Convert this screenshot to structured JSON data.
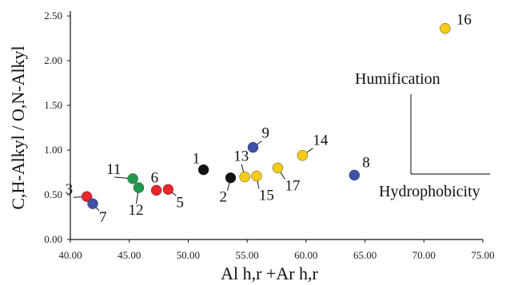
{
  "chart_data": {
    "type": "scatter",
    "title": "",
    "xlabel": "Al h,r +Ar h,r",
    "ylabel": "C,H-Alkyl / O,N-Alkyl",
    "xlim": [
      40,
      75
    ],
    "ylim": [
      0,
      2.5
    ],
    "x_ticks": [
      "40.00",
      "45.00",
      "50.00",
      "55.00",
      "60.00",
      "65.00",
      "70.00",
      "75.00"
    ],
    "y_ticks": [
      "0.00",
      "0.50",
      "1.00",
      "1.50",
      "2.00",
      "2.50"
    ],
    "grid": false,
    "colors": {
      "red": "#e8262b",
      "blue": "#3f51a8",
      "green": "#1f9a4a",
      "black": "#111111",
      "yellow": "#f5cc1a"
    },
    "points": [
      {
        "label": "1",
        "x": 51.3,
        "y": 0.78,
        "color": "black"
      },
      {
        "label": "2",
        "x": 53.6,
        "y": 0.69,
        "color": "black"
      },
      {
        "label": "3",
        "x": 41.4,
        "y": 0.48,
        "color": "red"
      },
      {
        "label": "5",
        "x": 48.3,
        "y": 0.56,
        "color": "red"
      },
      {
        "label": "6",
        "x": 47.3,
        "y": 0.55,
        "color": "red"
      },
      {
        "label": "7",
        "x": 41.9,
        "y": 0.4,
        "color": "blue"
      },
      {
        "label": "8",
        "x": 64.1,
        "y": 0.72,
        "color": "blue"
      },
      {
        "label": "9",
        "x": 55.5,
        "y": 1.03,
        "color": "blue"
      },
      {
        "label": "11",
        "x": 45.3,
        "y": 0.68,
        "color": "green"
      },
      {
        "label": "12",
        "x": 45.8,
        "y": 0.58,
        "color": "green"
      },
      {
        "label": "13",
        "x": 54.8,
        "y": 0.7,
        "color": "yellow"
      },
      {
        "label": "14",
        "x": 59.7,
        "y": 0.94,
        "color": "yellow"
      },
      {
        "label": "15",
        "x": 55.8,
        "y": 0.71,
        "color": "yellow"
      },
      {
        "label": "16",
        "x": 71.8,
        "y": 2.36,
        "color": "yellow"
      },
      {
        "label": "17",
        "x": 57.6,
        "y": 0.8,
        "color": "yellow"
      }
    ],
    "annotations": [
      "Humification",
      "Hydrophobicity"
    ]
  }
}
